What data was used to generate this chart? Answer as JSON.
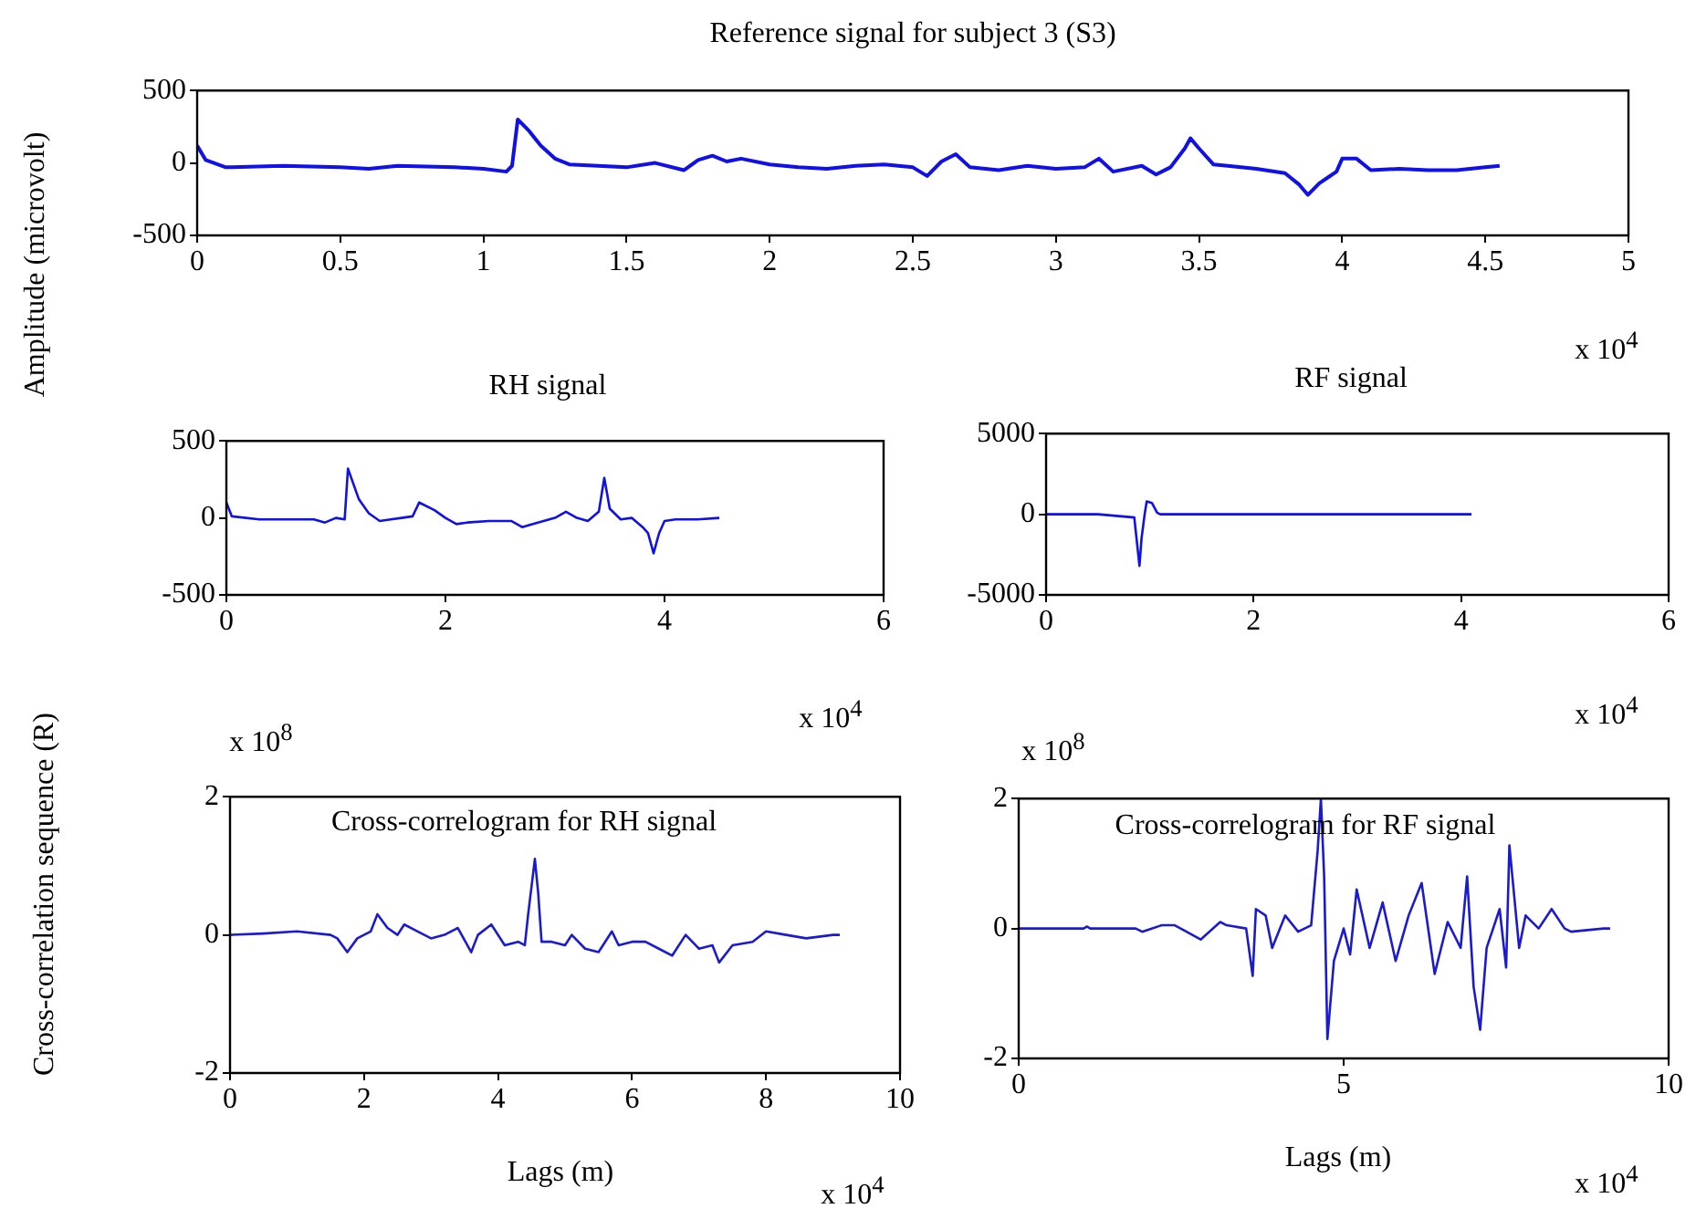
{
  "chart_data": [
    {
      "type": "line",
      "title": "Reference signal for subject 3 (S3)",
      "ylabel": "Amplitude (microvolt)",
      "color": "#1010e8",
      "annotations": [
        "x 10$^{4}$"
      ],
      "xlim": [
        0,
        5
      ],
      "xticks": [
        0,
        0.5,
        1,
        1.5,
        2,
        2.5,
        3,
        3.5,
        4,
        4.5,
        5
      ],
      "ylim": [
        -500,
        500
      ],
      "yticks": [
        -500,
        0,
        500
      ],
      "x": [
        0,
        0.03,
        0.1,
        0.3,
        0.5,
        0.6,
        0.7,
        0.9,
        1.0,
        1.08,
        1.1,
        1.12,
        1.16,
        1.2,
        1.25,
        1.3,
        1.4,
        1.5,
        1.6,
        1.7,
        1.75,
        1.8,
        1.85,
        1.9,
        2.0,
        2.1,
        2.2,
        2.3,
        2.4,
        2.5,
        2.55,
        2.6,
        2.65,
        2.7,
        2.8,
        2.9,
        3.0,
        3.1,
        3.15,
        3.2,
        3.3,
        3.35,
        3.4,
        3.45,
        3.47,
        3.5,
        3.55,
        3.6,
        3.7,
        3.8,
        3.85,
        3.88,
        3.92,
        3.95,
        3.98,
        4.0,
        4.05,
        4.1,
        4.2,
        4.3,
        4.4,
        4.5,
        4.55
      ],
      "values": [
        120,
        20,
        -30,
        -20,
        -30,
        -40,
        -20,
        -30,
        -40,
        -60,
        -20,
        300,
        220,
        120,
        30,
        -10,
        -20,
        -30,
        0,
        -50,
        20,
        50,
        10,
        30,
        -10,
        -30,
        -40,
        -20,
        -10,
        -30,
        -90,
        10,
        60,
        -30,
        -50,
        -20,
        -40,
        -30,
        30,
        -60,
        -20,
        -80,
        -30,
        100,
        170,
        100,
        -10,
        -20,
        -40,
        -70,
        -150,
        -220,
        -140,
        -100,
        -60,
        30,
        30,
        -50,
        -40,
        -50,
        -50,
        -30,
        -20
      ]
    },
    {
      "type": "line",
      "title": "RH signal",
      "color": "#1010e8",
      "annotations": [
        "x 10$^{4}$"
      ],
      "xlim": [
        0,
        6
      ],
      "xticks": [
        0,
        2,
        4,
        6
      ],
      "ylim": [
        -500,
        500
      ],
      "yticks": [
        -500,
        0,
        500
      ],
      "x": [
        0,
        0.05,
        0.3,
        0.5,
        0.8,
        0.9,
        1.0,
        1.08,
        1.11,
        1.21,
        1.3,
        1.4,
        1.5,
        1.6,
        1.7,
        1.76,
        1.9,
        2.0,
        2.1,
        2.2,
        2.4,
        2.6,
        2.7,
        2.8,
        3.0,
        3.1,
        3.2,
        3.3,
        3.4,
        3.45,
        3.5,
        3.6,
        3.7,
        3.8,
        3.85,
        3.9,
        3.95,
        4.0,
        4.1,
        4.3,
        4.5
      ],
      "values": [
        100,
        10,
        -10,
        -10,
        -10,
        -30,
        0,
        -10,
        320,
        120,
        30,
        -20,
        -10,
        0,
        10,
        100,
        50,
        0,
        -40,
        -30,
        -20,
        -20,
        -60,
        -40,
        0,
        40,
        0,
        -20,
        40,
        260,
        60,
        -10,
        0,
        -60,
        -100,
        -230,
        -100,
        -20,
        -10,
        -10,
        0
      ]
    },
    {
      "type": "line",
      "title": "RF signal",
      "color": "#1010e8",
      "annotations": [
        "x 10$^{4}$"
      ],
      "xlim": [
        0,
        6
      ],
      "xticks": [
        0,
        2,
        4,
        6
      ],
      "ylim": [
        -5000,
        5000
      ],
      "yticks": [
        -5000,
        0,
        5000
      ],
      "x": [
        0,
        0.5,
        0.85,
        0.9,
        0.92,
        0.95,
        0.97,
        1.02,
        1.07,
        1.1,
        2,
        3,
        4.1
      ],
      "values": [
        0,
        0,
        -200,
        -3200,
        -1500,
        0,
        800,
        700,
        100,
        0,
        0,
        0,
        0
      ]
    },
    {
      "type": "line",
      "xlabel": "Lags (m)",
      "ylabel": "Cross-correlation sequence (R)",
      "color": "#1a1ad0",
      "annotations": [
        "x 10$^{8}$",
        "Cross-correlogram for RH signal",
        "x 10$^{4}$"
      ],
      "xlim": [
        0,
        10
      ],
      "xticks": [
        0,
        2,
        4,
        6,
        8,
        10
      ],
      "ylim": [
        -2,
        2
      ],
      "yticks": [
        -2,
        0,
        2
      ],
      "x": [
        0,
        0.5,
        1,
        1.5,
        1.6,
        1.75,
        1.9,
        2.1,
        2.2,
        2.35,
        2.5,
        2.6,
        2.8,
        3.0,
        3.2,
        3.4,
        3.6,
        3.7,
        3.9,
        4.1,
        4.3,
        4.4,
        4.45,
        4.55,
        4.6,
        4.65,
        4.8,
        5.0,
        5.1,
        5.3,
        5.5,
        5.7,
        5.8,
        6.0,
        6.2,
        6.4,
        6.6,
        6.8,
        7.0,
        7.2,
        7.3,
        7.5,
        7.8,
        8.0,
        8.3,
        8.6,
        9.0,
        9.1
      ],
      "values": [
        0,
        0.02,
        0.05,
        0,
        -0.05,
        -0.25,
        -0.05,
        0.05,
        0.3,
        0.1,
        0,
        0.15,
        0.05,
        -0.05,
        0,
        0.1,
        -0.25,
        0,
        0.15,
        -0.15,
        -0.1,
        -0.15,
        0.3,
        1.1,
        0.6,
        -0.1,
        -0.1,
        -0.15,
        0,
        -0.2,
        -0.25,
        0.05,
        -0.15,
        -0.1,
        -0.1,
        -0.2,
        -0.3,
        0,
        -0.2,
        -0.15,
        -0.4,
        -0.15,
        -0.1,
        0.05,
        0,
        -0.05,
        0,
        0
      ]
    },
    {
      "type": "line",
      "xlabel": "Lags (m)",
      "color": "#1a1ad0",
      "annotations": [
        "x 10$^{8}$",
        "Cross-correlogram for RF signal",
        "x 10$^{4}$"
      ],
      "xlim": [
        0,
        10
      ],
      "xticks": [
        0,
        5,
        10
      ],
      "ylim": [
        -2,
        2
      ],
      "yticks": [
        -2,
        0,
        2
      ],
      "x": [
        0,
        1,
        1.05,
        1.1,
        1.8,
        1.9,
        2.2,
        2.4,
        2.8,
        3.1,
        3.2,
        3.5,
        3.6,
        3.65,
        3.8,
        3.9,
        4.1,
        4.3,
        4.5,
        4.6,
        4.65,
        4.7,
        4.75,
        4.85,
        5.0,
        5.1,
        5.2,
        5.4,
        5.6,
        5.8,
        6.0,
        6.2,
        6.4,
        6.6,
        6.8,
        6.9,
        7.0,
        7.1,
        7.2,
        7.4,
        7.5,
        7.55,
        7.7,
        7.8,
        8.0,
        8.2,
        8.4,
        8.5,
        9.0,
        9.1
      ],
      "values": [
        0,
        0,
        0.03,
        0,
        0,
        -0.05,
        0.05,
        0.05,
        -0.17,
        0.1,
        0.05,
        0,
        -0.73,
        0.3,
        0.2,
        -0.3,
        0.2,
        -0.05,
        0.05,
        1.2,
        2.0,
        0.8,
        -1.7,
        -0.5,
        0,
        -0.4,
        0.6,
        -0.3,
        0.4,
        -0.5,
        0.2,
        0.7,
        -0.7,
        0.1,
        -0.3,
        0.8,
        -0.9,
        -1.56,
        -0.3,
        0.3,
        -0.6,
        1.28,
        -0.3,
        0.2,
        0,
        0.3,
        0,
        -0.05,
        0,
        0
      ]
    }
  ]
}
